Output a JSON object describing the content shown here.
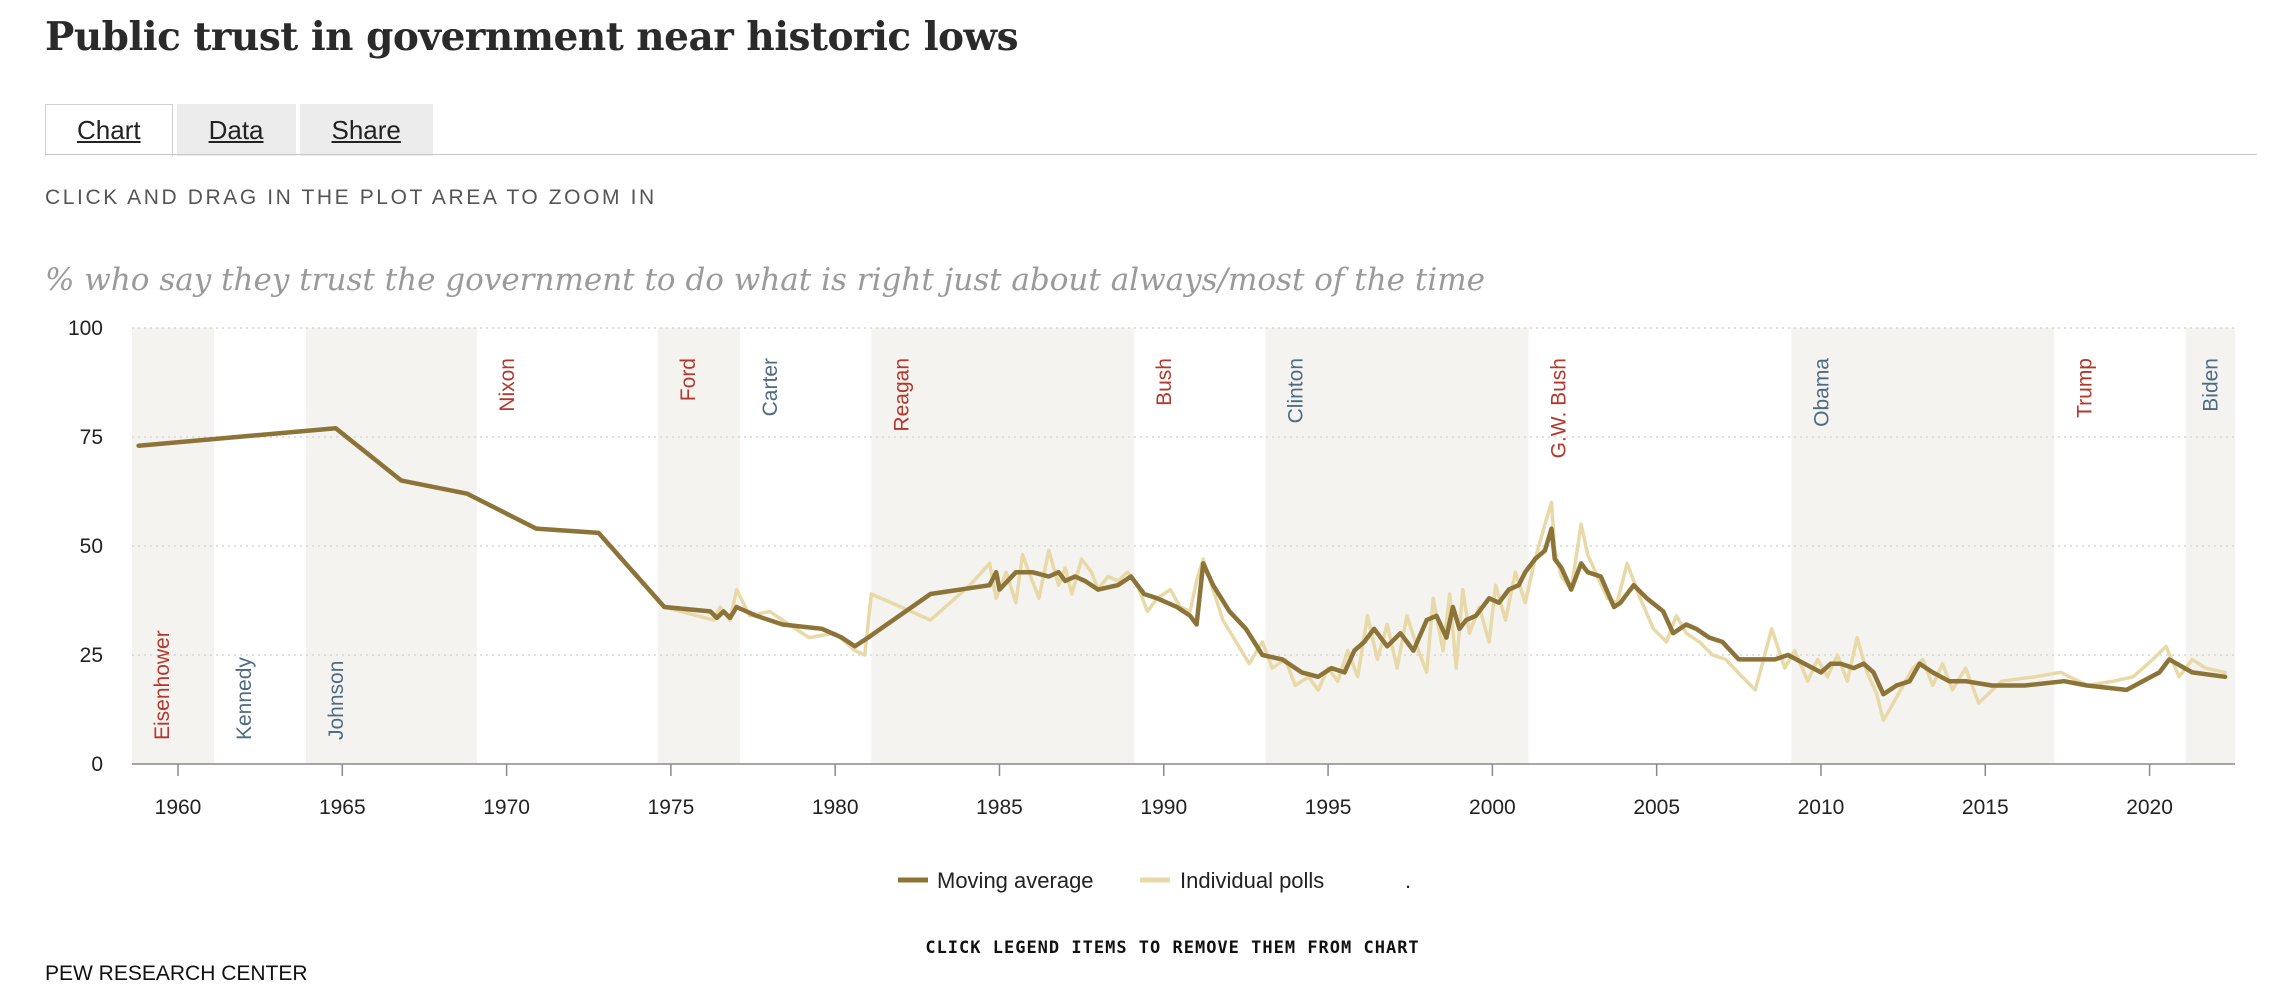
{
  "title": "Public trust in government near historic lows",
  "tabs": [
    {
      "label": "Chart",
      "active": true
    },
    {
      "label": "Data",
      "active": false
    },
    {
      "label": "Share",
      "active": false
    }
  ],
  "zoom_hint": "CLICK AND DRAG IN THE PLOT AREA TO ZOOM IN",
  "legend_hint": "CLICK LEGEND ITEMS TO REMOVE THEM FROM CHART",
  "source": "PEW RESEARCH CENTER",
  "chart_data": {
    "type": "line",
    "title": "% who say they trust the government to do what is right just about always/most of the time",
    "xlim": [
      1958.6,
      2022.6
    ],
    "ylim": [
      0,
      100
    ],
    "x_ticks": [
      1960,
      1965,
      1970,
      1975,
      1980,
      1985,
      1990,
      1995,
      2000,
      2005,
      2010,
      2015,
      2020
    ],
    "y_ticks": [
      0,
      25,
      50,
      75,
      100
    ],
    "grid": "horizontal dotted",
    "colors": {
      "moving_average": "#8c7438",
      "individual_polls": "#e8d9a8",
      "democrat": "#4e6b84",
      "republican": "#b5372b",
      "band": "#f4f3f0"
    },
    "presidents": [
      {
        "name": "Eisenhower",
        "start": 1958.6,
        "end": 1961.1,
        "party": "R",
        "shaded": true,
        "label_pos": "low"
      },
      {
        "name": "Kennedy",
        "start": 1961.1,
        "end": 1963.9,
        "party": "D",
        "shaded": false,
        "label_pos": "low"
      },
      {
        "name": "Johnson",
        "start": 1963.9,
        "end": 1969.1,
        "party": "D",
        "shaded": true,
        "label_pos": "low"
      },
      {
        "name": "Nixon",
        "start": 1969.1,
        "end": 1974.6,
        "party": "R",
        "shaded": false,
        "label_pos": "high"
      },
      {
        "name": "Ford",
        "start": 1974.6,
        "end": 1977.1,
        "party": "R",
        "shaded": true,
        "label_pos": "high"
      },
      {
        "name": "Carter",
        "start": 1977.1,
        "end": 1981.1,
        "party": "D",
        "shaded": false,
        "label_pos": "high"
      },
      {
        "name": "Reagan",
        "start": 1981.1,
        "end": 1989.1,
        "party": "R",
        "shaded": true,
        "label_pos": "high"
      },
      {
        "name": "Bush",
        "start": 1989.1,
        "end": 1993.1,
        "party": "R",
        "shaded": false,
        "label_pos": "high"
      },
      {
        "name": "Clinton",
        "start": 1993.1,
        "end": 2001.1,
        "party": "D",
        "shaded": true,
        "label_pos": "high"
      },
      {
        "name": "G.W. Bush",
        "start": 2001.1,
        "end": 2009.1,
        "party": "R",
        "shaded": false,
        "label_pos": "high"
      },
      {
        "name": "Obama",
        "start": 2009.1,
        "end": 2017.1,
        "party": "D",
        "shaded": true,
        "label_pos": "high"
      },
      {
        "name": "Trump",
        "start": 2017.1,
        "end": 2021.1,
        "party": "R",
        "shaded": false,
        "label_pos": "high"
      },
      {
        "name": "Biden",
        "start": 2021.1,
        "end": 2022.6,
        "party": "D",
        "shaded": true,
        "label_pos": "high"
      }
    ],
    "series": [
      {
        "name": "Moving average",
        "x": [
          1958.8,
          1964.8,
          1966.8,
          1968.8,
          1970.9,
          1972.8,
          1974.8,
          1976.2,
          1976.4,
          1976.6,
          1976.8,
          1977.0,
          1977.6,
          1978.4,
          1979.6,
          1980.2,
          1980.6,
          1981.0,
          1982.9,
          1984.7,
          1984.9,
          1985.0,
          1985.5,
          1986.0,
          1986.5,
          1986.8,
          1987.0,
          1987.3,
          1987.6,
          1988.0,
          1988.6,
          1989.0,
          1989.4,
          1989.8,
          1990.4,
          1990.8,
          1991.0,
          1991.2,
          1991.5,
          1992.0,
          1992.5,
          1993.0,
          1993.6,
          1994.2,
          1994.7,
          1995.1,
          1995.5,
          1995.8,
          1996.1,
          1996.4,
          1996.8,
          1997.2,
          1997.6,
          1998.0,
          1998.3,
          1998.6,
          1998.8,
          1999.0,
          1999.2,
          1999.5,
          1999.9,
          2000.2,
          2000.5,
          2000.8,
          2001.0,
          2001.3,
          2001.6,
          2001.8,
          2001.9,
          2002.1,
          2002.4,
          2002.7,
          2002.9,
          2003.3,
          2003.7,
          2003.9,
          2004.3,
          2004.7,
          2005.2,
          2005.5,
          2005.9,
          2006.2,
          2006.6,
          2007.0,
          2007.5,
          2008.0,
          2008.6,
          2009.0,
          2009.5,
          2010.0,
          2010.3,
          2010.6,
          2011.0,
          2011.3,
          2011.6,
          2011.9,
          2012.3,
          2012.7,
          2013.0,
          2013.4,
          2013.9,
          2014.4,
          2015.2,
          2016.2,
          2017.4,
          2018.1,
          2019.3,
          2020.3,
          2020.6,
          2021.3,
          2022.3
        ],
        "values": [
          73,
          77,
          65,
          62,
          54,
          53,
          36,
          35,
          33.5,
          35,
          33.5,
          36,
          34,
          32,
          31,
          29,
          27,
          29,
          39,
          41,
          44,
          40,
          44,
          44,
          43,
          44,
          42,
          43,
          42,
          40,
          41,
          43,
          39,
          38,
          36,
          34,
          32,
          46,
          41,
          35,
          31,
          25,
          24,
          21,
          20,
          22,
          21,
          26,
          28,
          31,
          27,
          30,
          26,
          33,
          34,
          29,
          36,
          31,
          33,
          34,
          38,
          37,
          40,
          41,
          44,
          47,
          49,
          54,
          47,
          45,
          40,
          46,
          44,
          43,
          36,
          37,
          41,
          38,
          35,
          30,
          32,
          31,
          29,
          28,
          24,
          24,
          24,
          25,
          23,
          21,
          23,
          23,
          22,
          23,
          21,
          16,
          18,
          19,
          23,
          21,
          19,
          19,
          18,
          18,
          19,
          18,
          17,
          21,
          24,
          21,
          20
        ]
      },
      {
        "name": "Individual polls",
        "x": [
          1958.8,
          1964.8,
          1966.8,
          1968.8,
          1970.9,
          1972.8,
          1974.8,
          1976.3,
          1976.5,
          1976.8,
          1977.0,
          1977.4,
          1978.0,
          1978.6,
          1979.2,
          1980.0,
          1980.6,
          1980.9,
          1981.1,
          1982.0,
          1982.9,
          1984.1,
          1984.7,
          1984.9,
          1985.2,
          1985.5,
          1985.7,
          1986.0,
          1986.2,
          1986.5,
          1986.8,
          1987.0,
          1987.2,
          1987.5,
          1987.8,
          1988.0,
          1988.3,
          1988.6,
          1988.9,
          1989.2,
          1989.5,
          1989.8,
          1990.2,
          1990.5,
          1990.8,
          1991.0,
          1991.2,
          1991.5,
          1991.8,
          1992.2,
          1992.6,
          1993.0,
          1993.3,
          1993.7,
          1994.0,
          1994.4,
          1994.7,
          1995.0,
          1995.3,
          1995.6,
          1995.9,
          1996.2,
          1996.5,
          1996.8,
          1997.1,
          1997.4,
          1997.7,
          1998.0,
          1998.2,
          1998.5,
          1998.7,
          1998.9,
          1999.1,
          1999.3,
          1999.6,
          1999.9,
          2000.1,
          2000.4,
          2000.7,
          2001.0,
          2001.3,
          2001.6,
          2001.8,
          2001.9,
          2002.1,
          2002.4,
          2002.7,
          2002.9,
          2003.2,
          2003.5,
          2003.8,
          2004.1,
          2004.5,
          2004.9,
          2005.3,
          2005.6,
          2005.9,
          2006.3,
          2006.7,
          2007.1,
          2007.6,
          2008.0,
          2008.5,
          2008.9,
          2009.2,
          2009.6,
          2009.9,
          2010.2,
          2010.5,
          2010.8,
          2011.1,
          2011.4,
          2011.7,
          2011.9,
          2012.2,
          2012.5,
          2012.8,
          2013.1,
          2013.4,
          2013.7,
          2014.0,
          2014.4,
          2014.8,
          2015.5,
          2016.5,
          2017.3,
          2018.1,
          2018.9,
          2019.5,
          2020.1,
          2020.5,
          2020.9,
          2021.3,
          2021.7,
          2022.3
        ],
        "values": [
          73,
          77,
          65,
          62,
          54,
          53,
          36,
          33,
          36,
          33,
          40,
          34,
          35,
          32,
          29,
          30,
          26,
          25,
          39,
          36,
          33,
          41,
          46,
          38,
          44,
          37,
          48,
          42,
          38,
          49,
          41,
          45,
          39,
          47,
          44,
          40,
          43,
          42,
          44,
          41,
          35,
          38,
          40,
          36,
          35,
          42,
          47,
          40,
          33,
          28,
          23,
          28,
          22,
          24,
          18,
          20,
          17,
          22,
          19,
          26,
          20,
          34,
          24,
          32,
          22,
          34,
          27,
          21,
          38,
          26,
          39,
          22,
          40,
          30,
          36,
          28,
          41,
          33,
          44,
          37,
          47,
          55,
          60,
          49,
          43,
          40,
          55,
          48,
          43,
          38,
          37,
          46,
          38,
          31,
          28,
          34,
          30,
          28,
          25,
          24,
          20,
          17,
          31,
          22,
          26,
          19,
          24,
          20,
          25,
          19,
          29,
          21,
          16,
          10,
          14,
          18,
          22,
          24,
          18,
          23,
          17,
          22,
          14,
          19,
          20,
          21,
          18,
          19,
          20,
          24,
          27,
          20,
          24,
          22,
          21
        ]
      }
    ],
    "legend": {
      "items": [
        "Moving average",
        "Individual polls"
      ],
      "extra": ".",
      "position": "bottom-center"
    }
  }
}
